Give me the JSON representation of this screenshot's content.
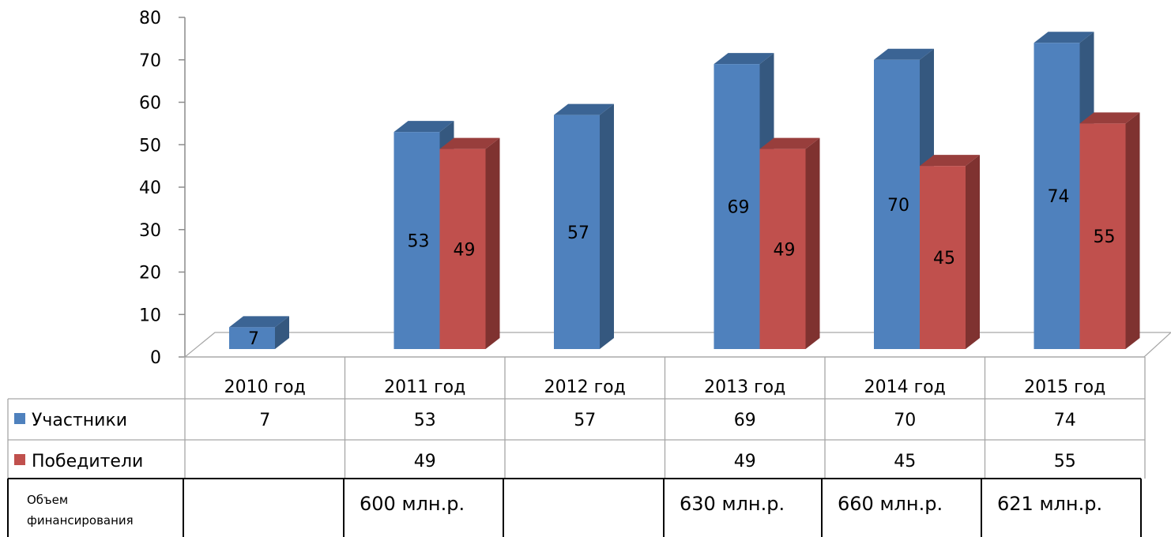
{
  "chart_data": {
    "type": "bar",
    "categories": [
      "2010 год",
      "2011 год",
      "2012 год",
      "2013 год",
      "2014 год",
      "2015 год"
    ],
    "series": [
      {
        "name": "Участники",
        "values": [
          7,
          53,
          57,
          69,
          70,
          74
        ],
        "color": "#4f81bd",
        "side": "#35587f",
        "top": "#3b6494"
      },
      {
        "name": "Победители",
        "values": [
          null,
          49,
          null,
          49,
          45,
          55
        ],
        "color": "#c0504d",
        "side": "#7f3230",
        "top": "#983e3c"
      }
    ],
    "ylim": [
      0,
      80
    ],
    "yticks": [
      0,
      10,
      20,
      30,
      40,
      50,
      60,
      70,
      80
    ],
    "grid": false,
    "legend": "data-table"
  },
  "funding_row": {
    "label_line1": "Объем",
    "label_line2": "финансирования",
    "values": [
      "",
      "600 млн.р.",
      "",
      "630 млн.р.",
      "660 млн.р.",
      "621 млн.р."
    ]
  }
}
